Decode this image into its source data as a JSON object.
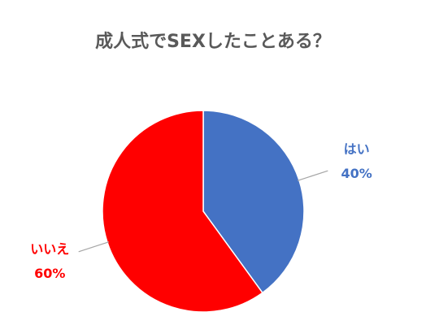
{
  "chart_data": {
    "type": "pie",
    "title": "成人式でSEXしたことある？",
    "categories": [
      "はい",
      "いいえ"
    ],
    "values": [
      40,
      60
    ],
    "value_labels": [
      "40%",
      "60%"
    ],
    "colors": [
      "#4472c4",
      "#ff0000"
    ]
  }
}
